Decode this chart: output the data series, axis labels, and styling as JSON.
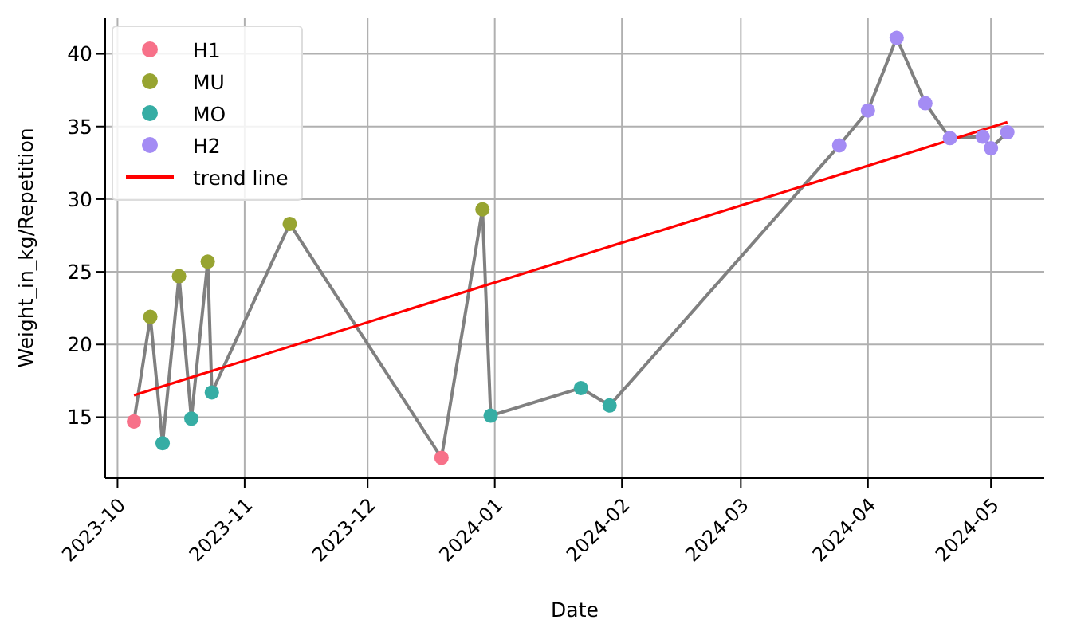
{
  "chart_data": {
    "type": "scatter",
    "xlabel": "Date",
    "ylabel": "Weight_in_kg/Repetition",
    "xlim": [
      "2023-09-28",
      "2024-05-14"
    ],
    "ylim": [
      10.8,
      42.5
    ],
    "xticks": [
      "2023-10",
      "2023-11",
      "2023-12",
      "2024-01",
      "2024-02",
      "2024-03",
      "2024-04",
      "2024-05"
    ],
    "yticks": [
      15,
      20,
      25,
      30,
      35,
      40
    ],
    "grid": true,
    "legend": "top left",
    "series": [
      {
        "type": "line",
        "color": "#808080",
        "marker": "none",
        "line_style": "solid",
        "x": [
          "2023-10-05",
          "2023-10-09",
          "2023-10-12",
          "2023-10-16",
          "2023-10-19",
          "2023-10-23",
          "2023-10-24",
          "2023-11-12",
          "2023-12-19",
          "2023-12-29",
          "2023-12-31",
          "2024-01-22",
          "2024-01-29",
          "2024-03-25",
          "2024-04-01",
          "2024-04-08",
          "2024-04-15",
          "2024-04-21",
          "2024-04-29",
          "2024-05-01",
          "2024-05-05"
        ],
        "values": [
          14.7,
          21.9,
          13.2,
          24.7,
          14.9,
          25.7,
          16.7,
          28.3,
          12.2,
          29.3,
          15.1,
          17.0,
          15.8,
          33.7,
          36.1,
          41.1,
          36.6,
          34.2,
          34.3,
          33.5,
          34.6
        ]
      },
      {
        "name": "H1",
        "color": "#f77189",
        "marker": "circle",
        "x": [
          "2023-10-05",
          "2023-12-19"
        ],
        "values": [
          14.7,
          12.2
        ]
      },
      {
        "name": "MU",
        "color": "#97a431",
        "marker": "circle",
        "x": [
          "2023-10-09",
          "2023-10-16",
          "2023-10-23",
          "2023-11-12",
          "2023-12-29"
        ],
        "values": [
          21.9,
          24.7,
          25.7,
          28.3,
          29.3
        ]
      },
      {
        "name": "MO",
        "color": "#36ada4",
        "marker": "circle",
        "x": [
          "2023-10-12",
          "2023-10-19",
          "2023-10-24",
          "2023-12-31",
          "2024-01-22",
          "2024-01-29"
        ],
        "values": [
          13.2,
          14.9,
          16.7,
          15.1,
          17.0,
          15.8
        ]
      },
      {
        "name": "H2",
        "color": "#a48cf4",
        "marker": "circle",
        "x": [
          "2024-03-25",
          "2024-04-01",
          "2024-04-08",
          "2024-04-15",
          "2024-04-21",
          "2024-04-29",
          "2024-05-01",
          "2024-05-05"
        ],
        "values": [
          33.7,
          36.1,
          41.1,
          36.6,
          34.2,
          34.3,
          33.5,
          34.6
        ]
      },
      {
        "name": "trend line",
        "type": "line",
        "color": "#ff0000",
        "marker": "none",
        "line_style": "solid",
        "x": [
          "2023-10-05",
          "2024-05-05"
        ],
        "values": [
          16.5,
          35.3
        ]
      }
    ]
  }
}
